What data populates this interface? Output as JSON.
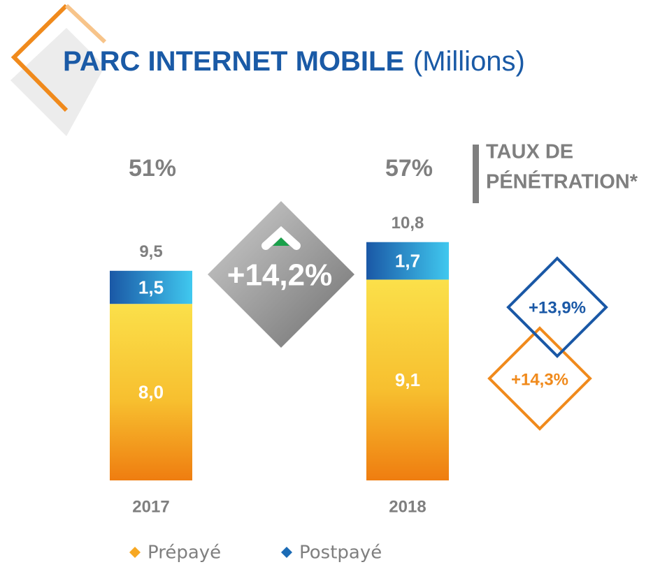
{
  "chart_data": {
    "type": "bar",
    "stacked": true,
    "title": "PARC INTERNET MOBILE",
    "subtitle": "(Millions)",
    "categories": [
      "2017",
      "2018"
    ],
    "series": [
      {
        "name": "Prépayé",
        "color": "#f7a823",
        "values": [
          8.0,
          9.1
        ],
        "value_labels": [
          "8,0",
          "9,1"
        ]
      },
      {
        "name": "Postpayé",
        "color": "#1b6bb5",
        "values": [
          1.5,
          1.7
        ],
        "value_labels": [
          "1,5",
          "1,7"
        ]
      }
    ],
    "totals": [
      9.5,
      10.8
    ],
    "total_labels": [
      "9,5",
      "10,8"
    ],
    "penetration": {
      "label_lines": [
        "TAUX DE",
        "PÉNÉTRATION*"
      ],
      "values": [
        51,
        57
      ],
      "value_labels": [
        "51%",
        "57%"
      ]
    },
    "annotations": [
      "+14,2%",
      "+13,9%",
      "+14,3%"
    ]
  }
}
